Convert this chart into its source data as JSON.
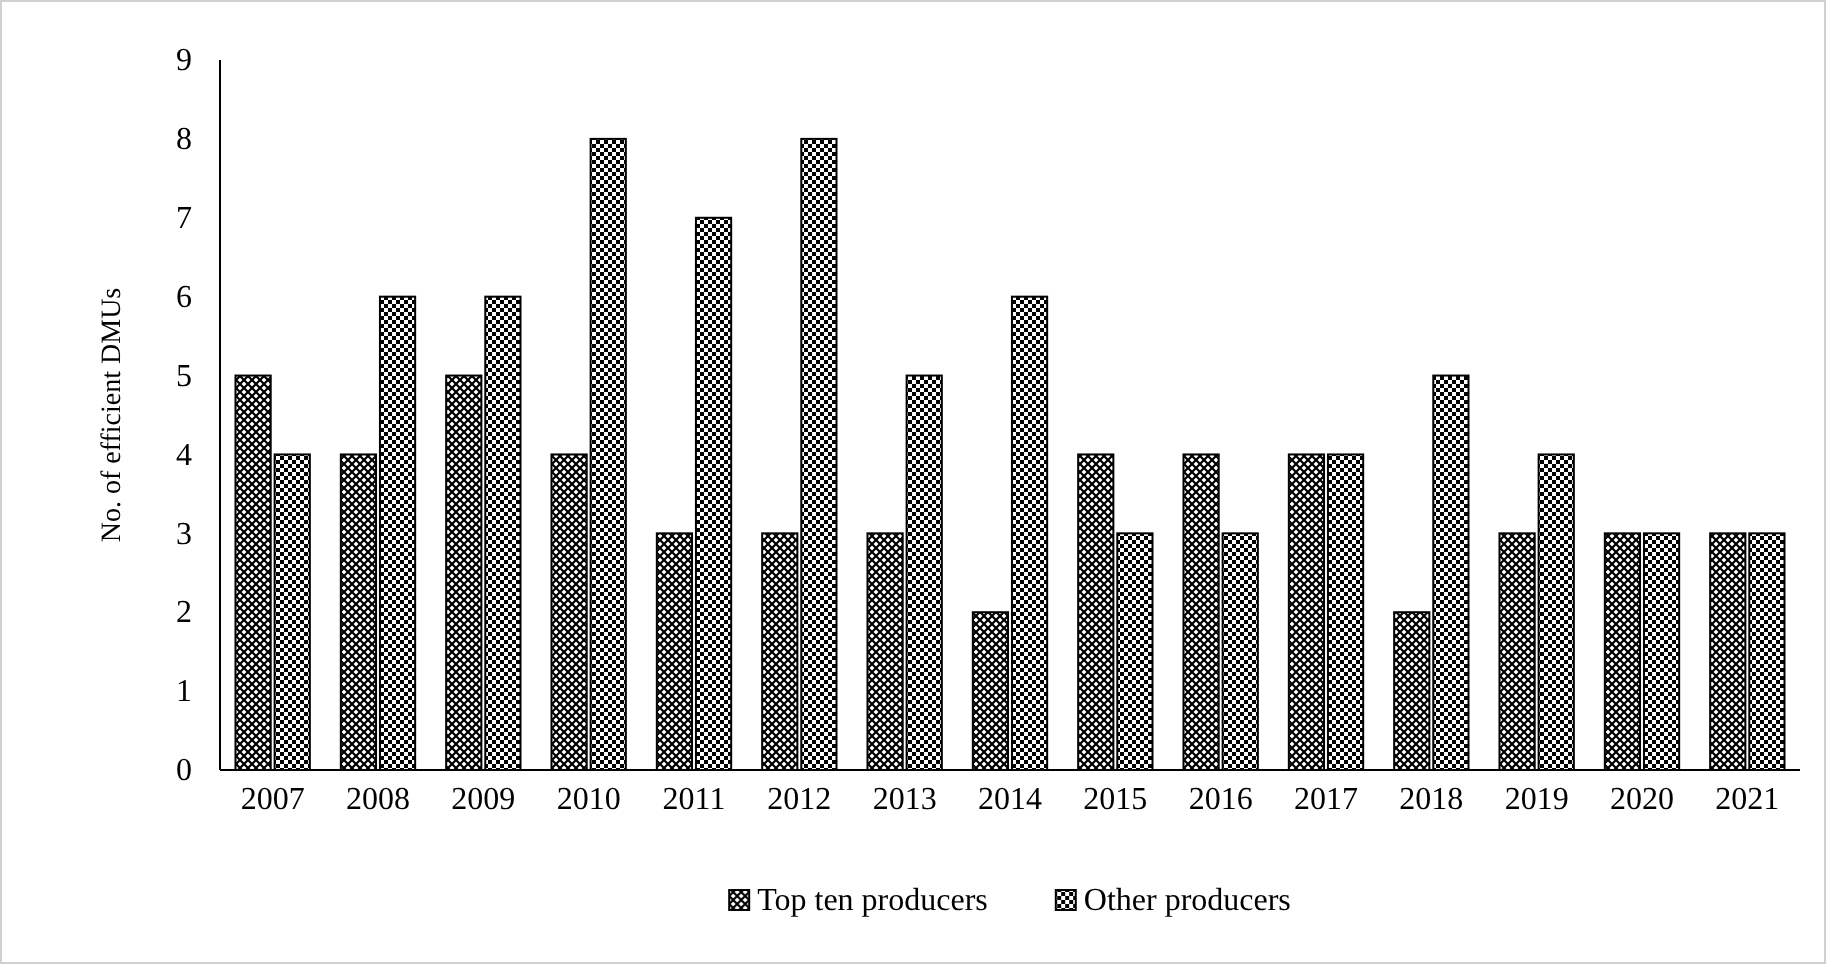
{
  "chart_data": {
    "type": "bar",
    "ylabel": "No. of efficient DMUs",
    "categories": [
      "2007",
      "2008",
      "2009",
      "2010",
      "2011",
      "2012",
      "2013",
      "2014",
      "2015",
      "2016",
      "2017",
      "2018",
      "2019",
      "2020",
      "2021"
    ],
    "series": [
      {
        "name": "Top ten producers",
        "color": "#000000",
        "values": [
          5,
          4,
          5,
          4,
          3,
          3,
          3,
          2,
          4,
          4,
          4,
          2,
          3,
          3,
          3
        ]
      },
      {
        "name": "Other producers",
        "color": "#000000",
        "values": [
          4,
          6,
          6,
          8,
          7,
          8,
          5,
          6,
          3,
          3,
          4,
          5,
          4,
          3,
          3
        ]
      }
    ],
    "ylim": [
      0,
      9
    ],
    "yticks": [
      0,
      1,
      2,
      3,
      4,
      5,
      6,
      7,
      8,
      9
    ],
    "grid": false,
    "legend": "bottom"
  }
}
